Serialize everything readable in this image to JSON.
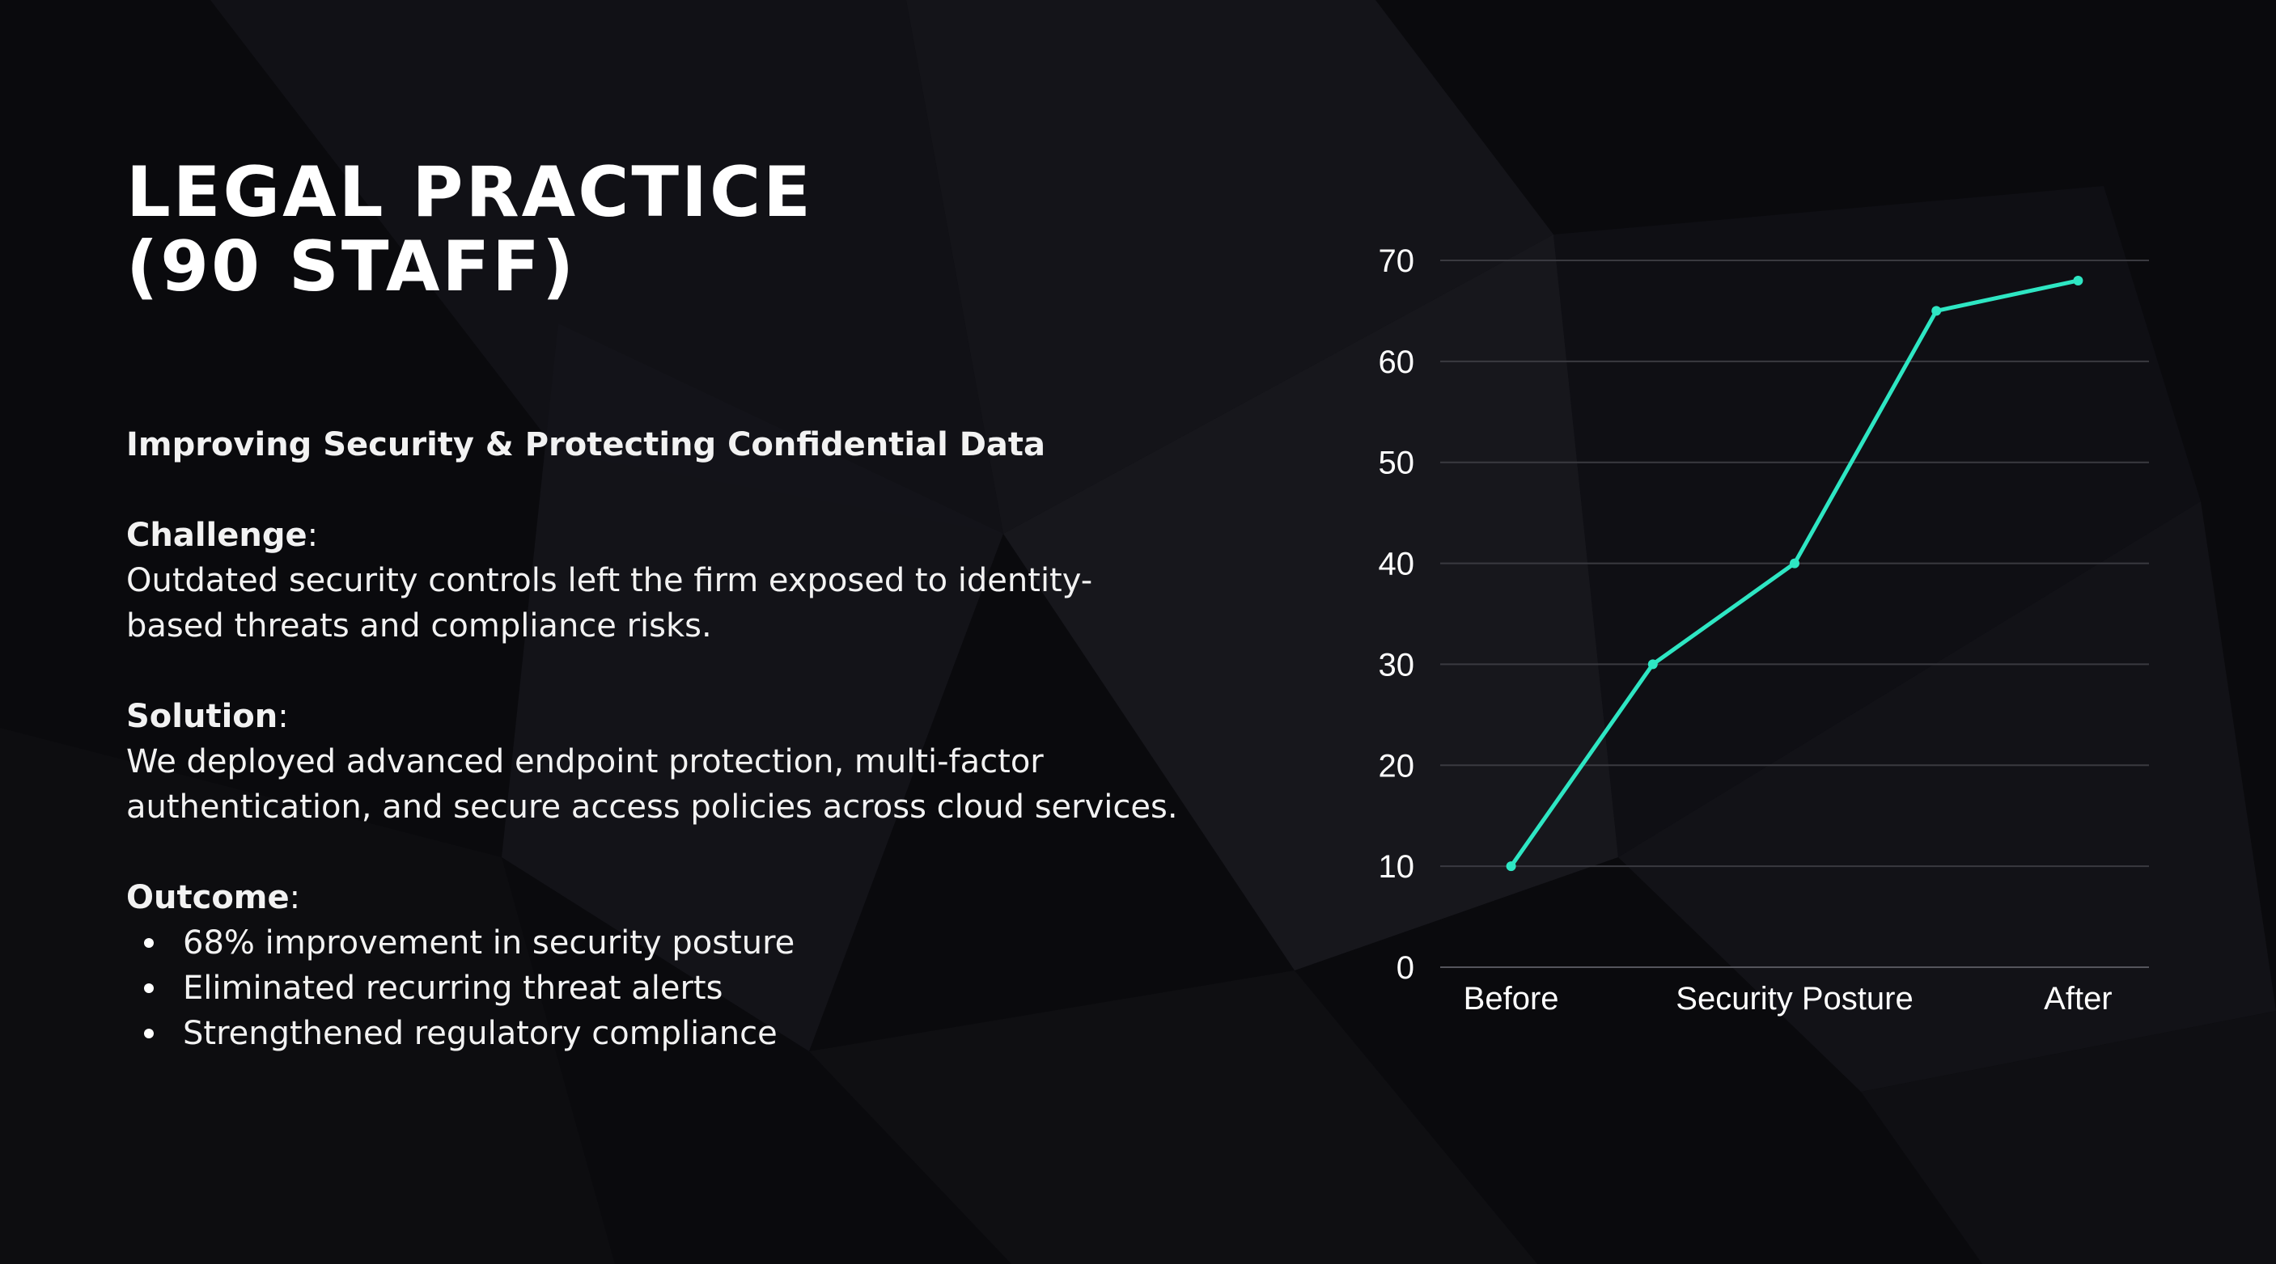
{
  "slide": {
    "title_line1": "LEGAL PRACTICE",
    "title_line2": "(90 STAFF)",
    "subtitle": "Improving Security & Protecting Confidential Data",
    "challenge": {
      "label": "Challenge",
      "line1": "Outdated security controls left the firm exposed to identity-",
      "line2": "based threats and compliance risks."
    },
    "solution": {
      "label": "Solution",
      "line1": "We deployed advanced endpoint protection, multi-factor",
      "line2": "authentication, and secure access policies across cloud services."
    },
    "outcome": {
      "label": "Outcome",
      "items": [
        "68% improvement in security posture",
        "Eliminated recurring threat alerts",
        "Strengthened regulatory compliance"
      ]
    }
  },
  "colors": {
    "background": "#0a0a0d",
    "line": "#2ee6c3",
    "gridline": "#3a3a40",
    "text": "#ffffff"
  },
  "chart_data": {
    "type": "line",
    "x_tick_labels": [
      "Before",
      "Security Posture",
      "After"
    ],
    "series": [
      {
        "values": [
          10,
          30,
          40,
          65,
          68
        ]
      }
    ],
    "ylim": [
      0,
      70
    ],
    "yticks": [
      0,
      10,
      20,
      30,
      40,
      50,
      60,
      70
    ],
    "grid": true,
    "legend": "none"
  }
}
